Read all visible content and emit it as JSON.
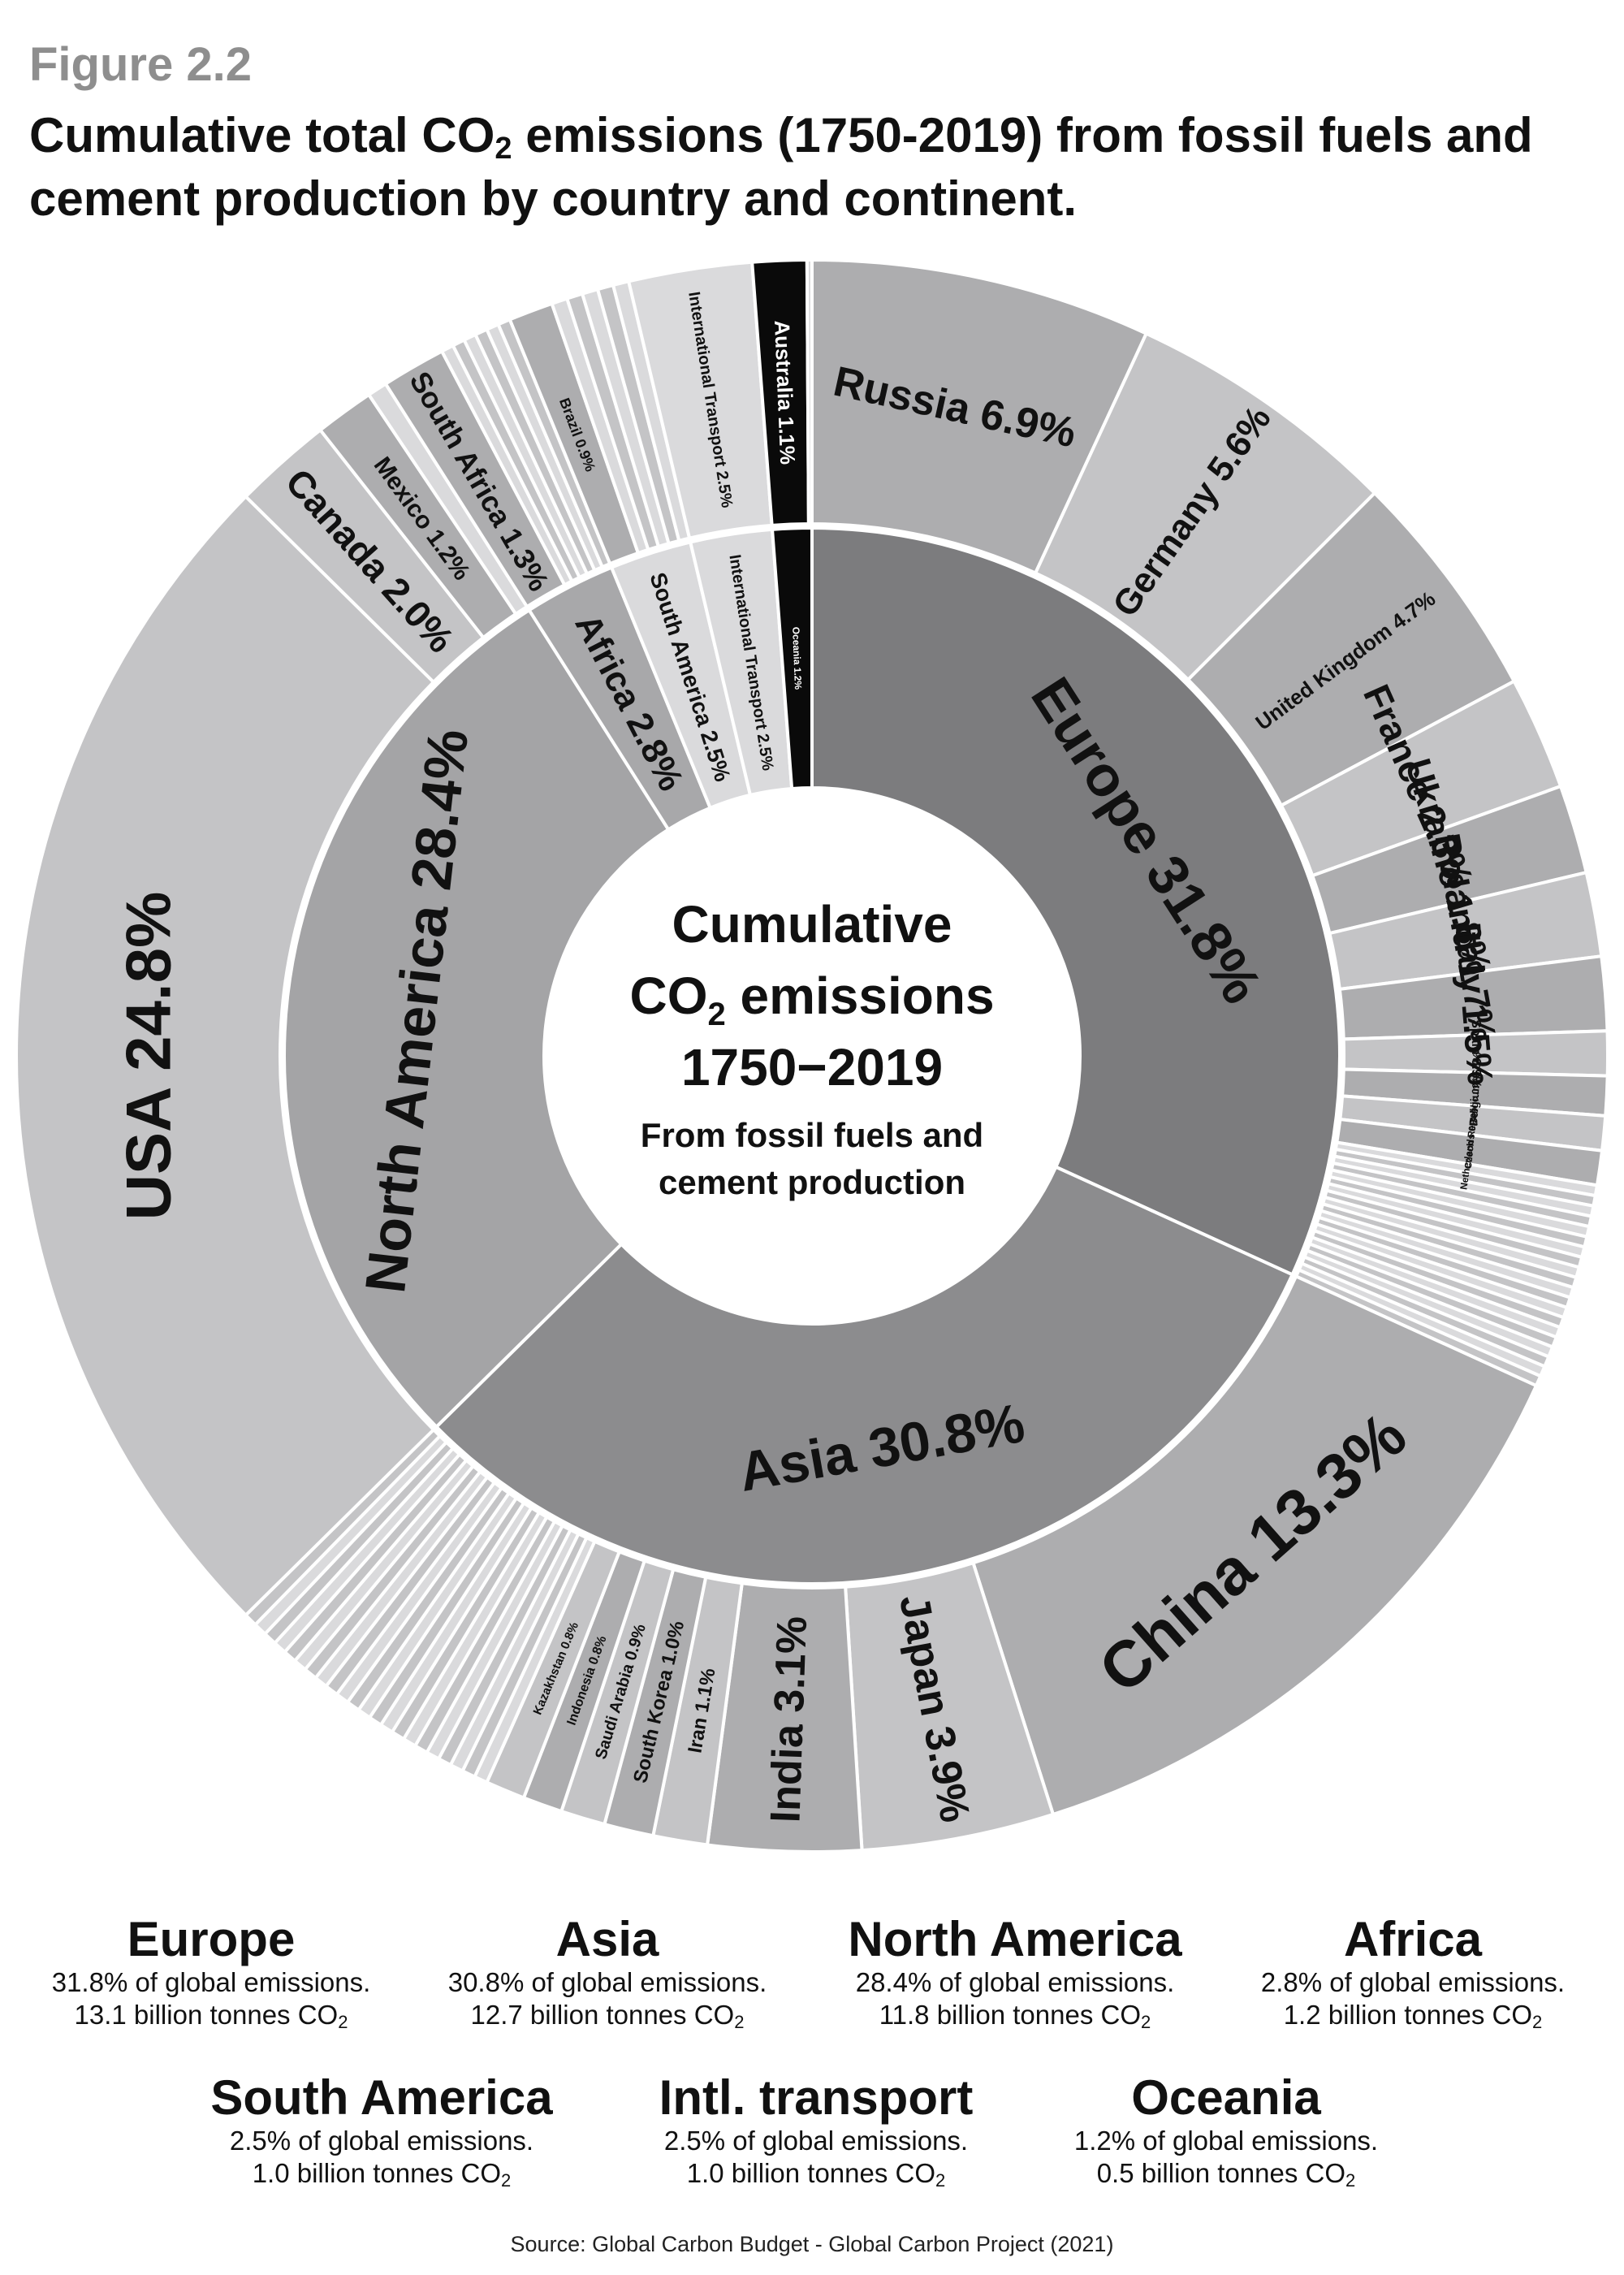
{
  "figure_number": "Figure 2.2",
  "title_part1": "Cumulative total CO",
  "title_sub": "2",
  "title_part2": " emissions (1750-2019) from fossil fuels and cement production by country and continent.",
  "center": {
    "line1": "Cumulative",
    "line2a": "CO",
    "line2sub": "2",
    "line2b": " emissions",
    "line3": "1750−2019",
    "line4": "From fossil fuels and",
    "line5": "cement production"
  },
  "colors": {
    "europe_inner": "#7c7c7e",
    "asia_inner": "#8c8c8e",
    "north_america_inner": "#a4a4a6",
    "small_inner": "#a8a8aa",
    "outer_light": "#c4c4c6",
    "outer_mid": "#adadaf",
    "outer_pale": "#dadadc",
    "oceania": "#0a0a0a",
    "separator": "#ffffff"
  },
  "chart_data": {
    "type": "sunburst",
    "title": "Cumulative total CO2 emissions (1750-2019) from fossil fuels and cement production by country and continent.",
    "unit": "% of global cumulative emissions",
    "inner": [
      {
        "name": "Europe",
        "value": 31.8,
        "label": "Europe 31.8%"
      },
      {
        "name": "Asia",
        "value": 30.8,
        "label": "Asia 30.8%"
      },
      {
        "name": "North America",
        "value": 28.4,
        "label": "North America 28.4%"
      },
      {
        "name": "Africa",
        "value": 2.8,
        "label": "Africa 2.8%"
      },
      {
        "name": "South America",
        "value": 2.5,
        "label": "South America 2.5%"
      },
      {
        "name": "International Transport",
        "value": 2.5,
        "label": "International Transport 2.5%"
      },
      {
        "name": "Oceania",
        "value": 1.2,
        "label": "Oceania 1.2%"
      }
    ],
    "outer": [
      {
        "parent": "Europe",
        "name": "Russia",
        "value": 6.9,
        "label": "Russia 6.9%"
      },
      {
        "parent": "Europe",
        "name": "Germany",
        "value": 5.6,
        "label": "Germany 5.6%"
      },
      {
        "parent": "Europe",
        "name": "United Kingdom",
        "value": 4.7,
        "label": "United Kingdom 4.7%"
      },
      {
        "parent": "Europe",
        "name": "France",
        "value": 2.3,
        "label": "France 2.3%"
      },
      {
        "parent": "Europe",
        "name": "Ukraine",
        "value": 1.8,
        "label": "Ukraine 1.8%"
      },
      {
        "parent": "Europe",
        "name": "Poland",
        "value": 1.7,
        "label": "Poland 1.7%"
      },
      {
        "parent": "Europe",
        "name": "Italy",
        "value": 1.5,
        "label": "Italy 1.5%"
      },
      {
        "parent": "Europe",
        "name": "Spain",
        "value": 0.9,
        "label": "Spain 0.9%"
      },
      {
        "parent": "Europe",
        "name": "Belgium",
        "value": 0.8,
        "label": "Belgium 0.8%"
      },
      {
        "parent": "Europe",
        "name": "Czech Republic",
        "value": 0.7,
        "label": "Czech Republic 0.7%"
      },
      {
        "parent": "Europe",
        "name": "Netherlands",
        "value": 0.7,
        "label": "Netherlands 0.7%"
      },
      {
        "parent": "Europe",
        "name": "Other Europe",
        "value": 4.2,
        "label": "",
        "split": 20
      },
      {
        "parent": "Asia",
        "name": "China",
        "value": 13.3,
        "label": "China 13.3%"
      },
      {
        "parent": "Asia",
        "name": "Japan",
        "value": 3.9,
        "label": "Japan 3.9%"
      },
      {
        "parent": "Asia",
        "name": "India",
        "value": 3.1,
        "label": "India 3.1%"
      },
      {
        "parent": "Asia",
        "name": "Iran",
        "value": 1.1,
        "label": "Iran 1.1%"
      },
      {
        "parent": "Asia",
        "name": "South Korea",
        "value": 1.0,
        "label": "South Korea 1.0%"
      },
      {
        "parent": "Asia",
        "name": "Saudi Arabia",
        "value": 0.9,
        "label": "Saudi Arabia 0.9%"
      },
      {
        "parent": "Asia",
        "name": "Indonesia",
        "value": 0.8,
        "label": "Indonesia 0.8%"
      },
      {
        "parent": "Asia",
        "name": "Kazakhstan",
        "value": 0.8,
        "label": "Kazakhstan 0.8%"
      },
      {
        "parent": "Asia",
        "name": "Other Asia",
        "value": 5.9,
        "label": "",
        "split": 22
      },
      {
        "parent": "North America",
        "name": "USA",
        "value": 24.8,
        "label": "USA 24.8%"
      },
      {
        "parent": "North America",
        "name": "Canada",
        "value": 2.0,
        "label": "Canada 2.0%"
      },
      {
        "parent": "North America",
        "name": "Mexico",
        "value": 1.2,
        "label": "Mexico 1.2%"
      },
      {
        "parent": "North America",
        "name": "Other North America",
        "value": 0.4,
        "label": "",
        "split": 1
      },
      {
        "parent": "Africa",
        "name": "South Africa",
        "value": 1.3,
        "label": "South Africa 1.3%"
      },
      {
        "parent": "Africa",
        "name": "Other Africa",
        "value": 1.5,
        "label": "",
        "split": 6
      },
      {
        "parent": "South America",
        "name": "Brazil",
        "value": 0.9,
        "label": "Brazil 0.9%"
      },
      {
        "parent": "South America",
        "name": "Other South America",
        "value": 1.6,
        "label": "",
        "split": 5
      },
      {
        "parent": "International Transport",
        "name": "International Transport",
        "value": 2.5,
        "label": "International Transport 2.5%"
      },
      {
        "parent": "Oceania",
        "name": "Australia",
        "value": 1.1,
        "label": "Australia 1.1%"
      },
      {
        "parent": "Oceania",
        "name": "Other Oceania",
        "value": 0.1,
        "label": "",
        "split": 1
      }
    ]
  },
  "legend": [
    {
      "name": "Europe",
      "pct": "31.8% of global emissions.",
      "amount": "13.1 billion tonnes CO",
      "sub": "2"
    },
    {
      "name": "Asia",
      "pct": "30.8% of global emissions.",
      "amount": "12.7 billion tonnes CO",
      "sub": "2"
    },
    {
      "name": "North America",
      "pct": "28.4% of global emissions.",
      "amount": "11.8 billion tonnes CO",
      "sub": "2"
    },
    {
      "name": "Africa",
      "pct": "2.8% of global emissions.",
      "amount": "1.2 billion tonnes CO",
      "sub": "2"
    },
    {
      "name": "South America",
      "pct": "2.5% of global emissions.",
      "amount": "1.0 billion tonnes CO",
      "sub": "2"
    },
    {
      "name": "Intl. transport",
      "pct": "2.5% of global emissions.",
      "amount": "1.0 billion tonnes CO",
      "sub": "2"
    },
    {
      "name": "Oceania",
      "pct": "1.2% of global emissions.",
      "amount": "0.5 billion tonnes CO",
      "sub": "2"
    }
  ],
  "source": "Source: Global Carbon Budget - Global Carbon Project (2021)"
}
